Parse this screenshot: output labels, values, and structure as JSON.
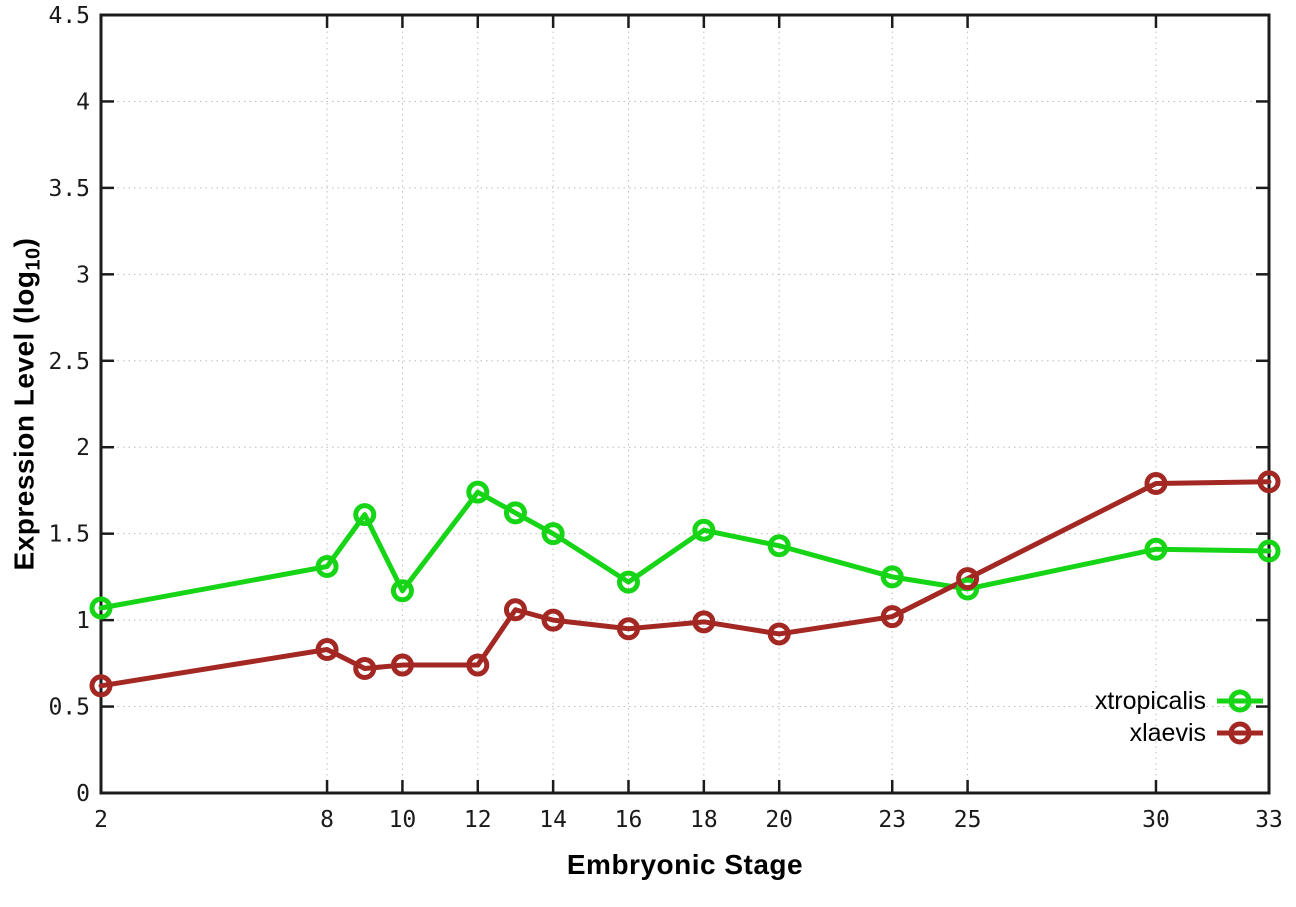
{
  "chart_data": {
    "type": "line",
    "title": "",
    "xlabel": "Embryonic Stage",
    "ylabel": "Expression Level (log10)",
    "ylabel_parts": {
      "prefix": "Expression Level (log",
      "sub": "10",
      "suffix": ")"
    },
    "xlim": [
      2,
      33
    ],
    "ylim": [
      0,
      4.5
    ],
    "grid": true,
    "legend_position": "inside-right-bottom",
    "x_tick_values": [
      2,
      8,
      10,
      12,
      14,
      16,
      18,
      20,
      23,
      25,
      30,
      33
    ],
    "x_tick_labels": [
      "2",
      "8",
      "10",
      "12",
      "14",
      "16",
      "18",
      "20",
      "23",
      "25",
      "30",
      "33"
    ],
    "y_tick_values": [
      0,
      0.5,
      1,
      1.5,
      2,
      2.5,
      3,
      3.5,
      4,
      4.5
    ],
    "y_tick_labels": [
      "0",
      "0.5",
      "1",
      "1.5",
      "2",
      "2.5",
      "3",
      "3.5",
      "4",
      "4.5"
    ],
    "x": [
      2,
      8,
      9,
      10,
      12,
      13,
      14,
      16,
      18,
      20,
      23,
      25,
      30,
      33
    ],
    "series": [
      {
        "name": "xtropicalis",
        "color": "#16d416",
        "marker": "open-circle",
        "values": [
          1.07,
          1.31,
          1.61,
          1.17,
          1.74,
          1.62,
          1.5,
          1.22,
          1.52,
          1.43,
          1.25,
          1.18,
          1.41,
          1.4
        ]
      },
      {
        "name": "xlaevis",
        "color": "#a32823",
        "marker": "open-circle",
        "values": [
          0.62,
          0.83,
          0.72,
          0.74,
          0.74,
          1.06,
          1.0,
          0.95,
          0.99,
          0.92,
          1.02,
          1.24,
          1.79,
          1.8
        ]
      }
    ],
    "colors": {
      "grid": "#bdbdbd",
      "axis": "#1c1c1c",
      "background": "#ffffff"
    }
  }
}
